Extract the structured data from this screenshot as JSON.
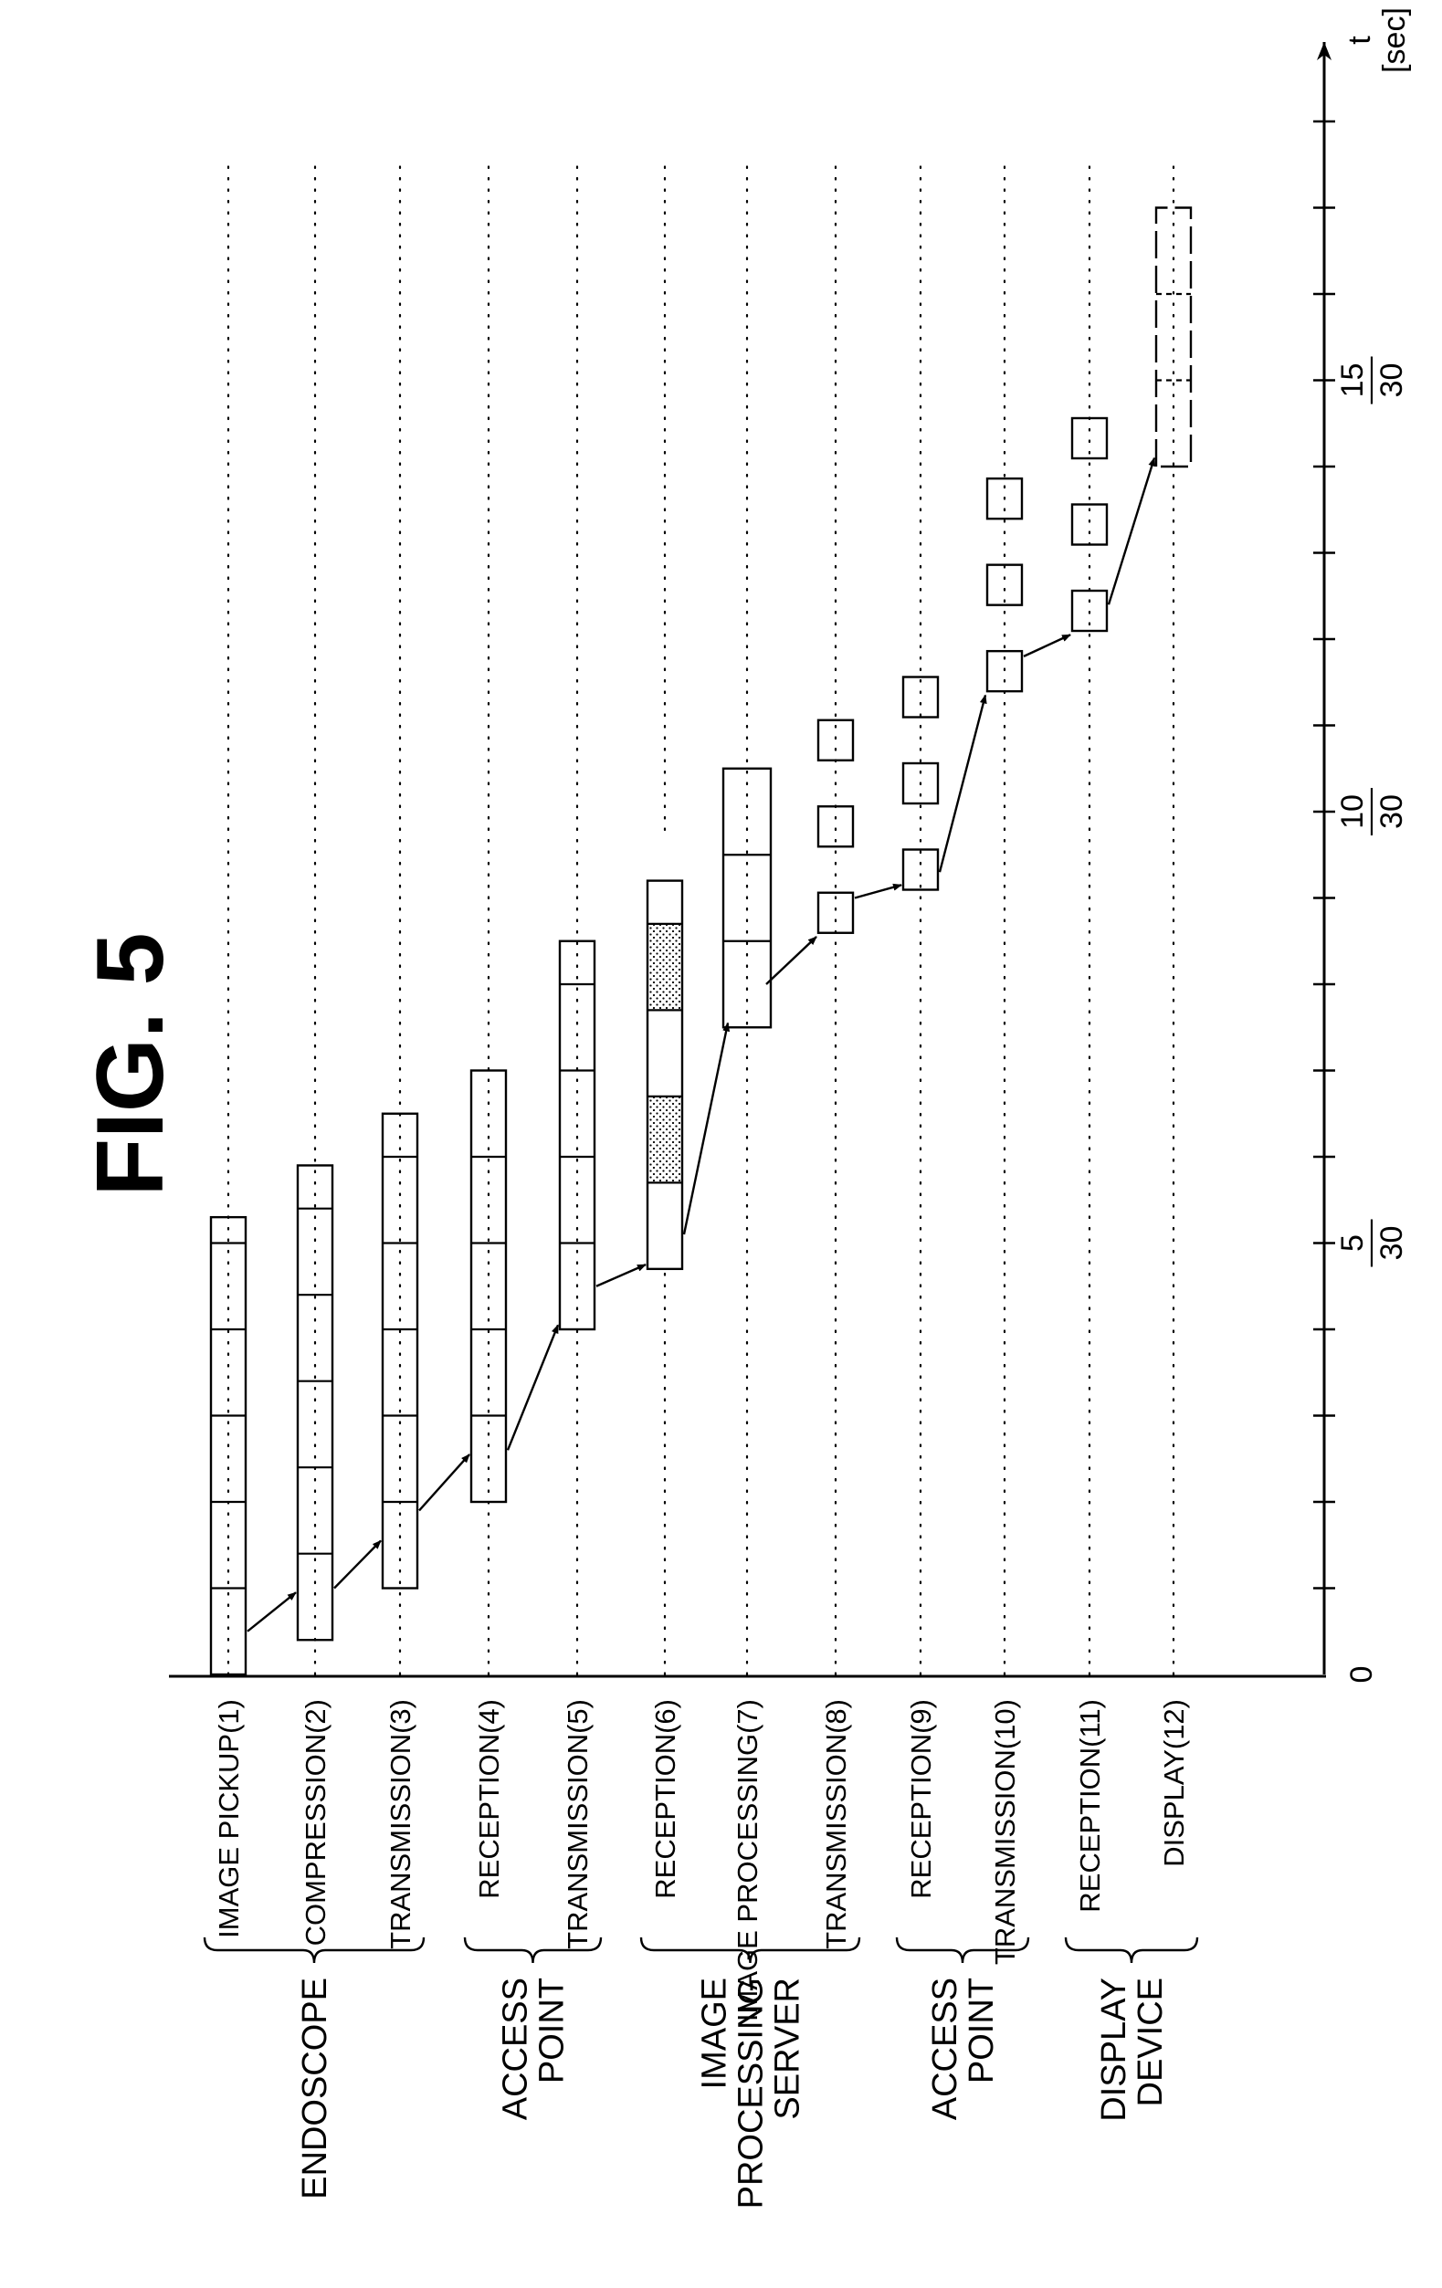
{
  "figure": {
    "title": "FIG. 5",
    "axis": {
      "label": "t",
      "unit": "[sec]"
    },
    "ticks": [
      {
        "value": 0,
        "label": "0"
      },
      {
        "value": 5,
        "num": "5",
        "den": "30"
      },
      {
        "value": 10,
        "num": "10",
        "den": "30"
      },
      {
        "value": 15,
        "num": "15",
        "den": "30"
      }
    ],
    "rows": [
      {
        "label": "IMAGE PICKUP(1)"
      },
      {
        "label": "COMPRESSION(2)"
      },
      {
        "label": "TRANSMISSION(3)"
      },
      {
        "label": "RECEPTION(4)"
      },
      {
        "label": "TRANSMISSION(5)"
      },
      {
        "label": "RECEPTION(6)"
      },
      {
        "label": "IMAGE PROCESSING(7)"
      },
      {
        "label": "TRANSMISSION(8)"
      },
      {
        "label": "RECEPTION(9)"
      },
      {
        "label": "TRANSMISSION(10)"
      },
      {
        "label": "RECEPTION(11)"
      },
      {
        "label": "DISPLAY(12)"
      }
    ],
    "groups": [
      {
        "lines": [
          "ENDOSCOPE"
        ],
        "first": 0,
        "last": 2
      },
      {
        "lines": [
          "ACCESS",
          "POINT"
        ],
        "first": 3,
        "last": 4
      },
      {
        "lines": [
          "IMAGE",
          "PROCESSING",
          "SERVER"
        ],
        "first": 5,
        "last": 7
      },
      {
        "lines": [
          "ACCESS",
          "POINT"
        ],
        "first": 8,
        "last": 9
      },
      {
        "lines": [
          "DISPLAY",
          "DEVICE"
        ],
        "first": 10,
        "last": 11
      }
    ]
  }
}
